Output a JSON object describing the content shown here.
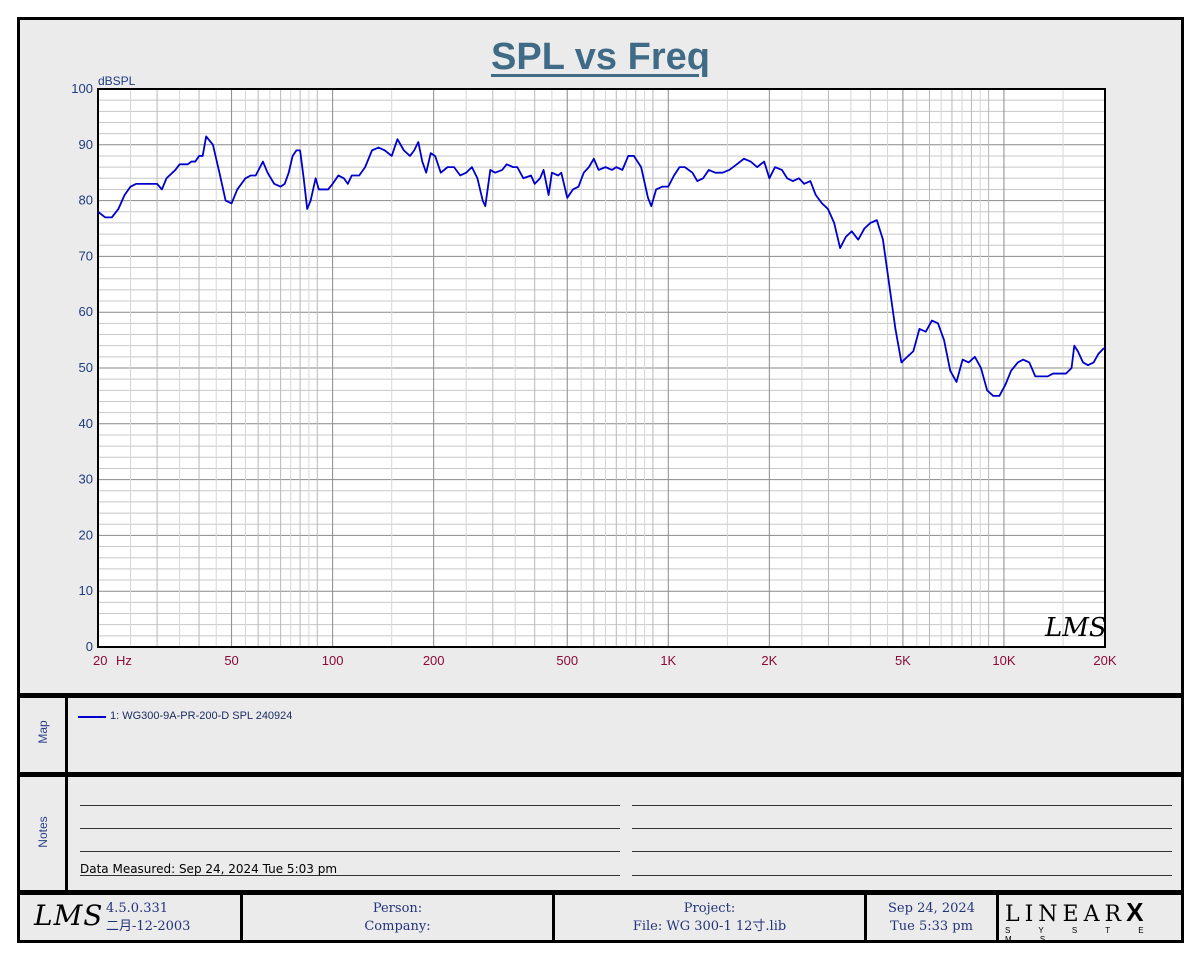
{
  "title": "SPL vs Freq",
  "chart_data": {
    "type": "line",
    "title": "SPL vs Freq",
    "ylabel": "dBSPL",
    "xlabel": "Hz",
    "x_scale": "log",
    "xlim": [
      20,
      20000
    ],
    "ylim": [
      0,
      100
    ],
    "grid": true,
    "y_ticks": [
      "0",
      "10",
      "20",
      "30",
      "40",
      "50",
      "60",
      "70",
      "80",
      "90",
      "100"
    ],
    "x_ticks": [
      {
        "value": 20,
        "label": "20"
      },
      {
        "value": 50,
        "label": "50"
      },
      {
        "value": 100,
        "label": "100"
      },
      {
        "value": 200,
        "label": "200"
      },
      {
        "value": 500,
        "label": "500"
      },
      {
        "value": 1000,
        "label": "1K"
      },
      {
        "value": 2000,
        "label": "2K"
      },
      {
        "value": 5000,
        "label": "5K"
      },
      {
        "value": 10000,
        "label": "10K"
      },
      {
        "value": 20000,
        "label": "20K"
      }
    ],
    "series": [
      {
        "name": "1: WG300-9A-PR-200-D SPL 240924",
        "color": "#0000cc",
        "points": [
          [
            20,
            78
          ],
          [
            21,
            77
          ],
          [
            22,
            77
          ],
          [
            23,
            78.5
          ],
          [
            24,
            81
          ],
          [
            25,
            82.5
          ],
          [
            26,
            83
          ],
          [
            28,
            83
          ],
          [
            30,
            83
          ],
          [
            31,
            82
          ],
          [
            32,
            84
          ],
          [
            34,
            85.5
          ],
          [
            35,
            86.5
          ],
          [
            37,
            86.5
          ],
          [
            38,
            87
          ],
          [
            39,
            87
          ],
          [
            40,
            88
          ],
          [
            41,
            88
          ],
          [
            42,
            91.5
          ],
          [
            44,
            90
          ],
          [
            46,
            85
          ],
          [
            48,
            80
          ],
          [
            50,
            79.5
          ],
          [
            52,
            82
          ],
          [
            55,
            84
          ],
          [
            57,
            84.5
          ],
          [
            59,
            84.5
          ],
          [
            62,
            87
          ],
          [
            64,
            85
          ],
          [
            67,
            83
          ],
          [
            70,
            82.5
          ],
          [
            72,
            83
          ],
          [
            74,
            85
          ],
          [
            76,
            88
          ],
          [
            78,
            89
          ],
          [
            80,
            89
          ],
          [
            82,
            84
          ],
          [
            84,
            78.5
          ],
          [
            86,
            80
          ],
          [
            89,
            84
          ],
          [
            91,
            82
          ],
          [
            94,
            82
          ],
          [
            97,
            82
          ],
          [
            100,
            83
          ],
          [
            104,
            84.5
          ],
          [
            108,
            84
          ],
          [
            111,
            83
          ],
          [
            114,
            84.5
          ],
          [
            120,
            84.5
          ],
          [
            125,
            86
          ],
          [
            131,
            89
          ],
          [
            137,
            89.5
          ],
          [
            143,
            89
          ],
          [
            150,
            88
          ],
          [
            156,
            91
          ],
          [
            163,
            89
          ],
          [
            170,
            88
          ],
          [
            175,
            89
          ],
          [
            180,
            90.5
          ],
          [
            185,
            87
          ],
          [
            190,
            85
          ],
          [
            196,
            88.5
          ],
          [
            202,
            88
          ],
          [
            210,
            85
          ],
          [
            220,
            86
          ],
          [
            230,
            86
          ],
          [
            240,
            84.5
          ],
          [
            250,
            85
          ],
          [
            260,
            86
          ],
          [
            270,
            84
          ],
          [
            280,
            80
          ],
          [
            285,
            79
          ],
          [
            295,
            85.5
          ],
          [
            305,
            85
          ],
          [
            320,
            85.5
          ],
          [
            330,
            86.5
          ],
          [
            345,
            86
          ],
          [
            355,
            86
          ],
          [
            370,
            84
          ],
          [
            390,
            84.5
          ],
          [
            400,
            83
          ],
          [
            415,
            84
          ],
          [
            425,
            85.5
          ],
          [
            440,
            81
          ],
          [
            450,
            85
          ],
          [
            470,
            84.5
          ],
          [
            480,
            85
          ],
          [
            500,
            80.5
          ],
          [
            520,
            82
          ],
          [
            540,
            82.5
          ],
          [
            560,
            85
          ],
          [
            580,
            86
          ],
          [
            600,
            87.5
          ],
          [
            620,
            85.5
          ],
          [
            650,
            86
          ],
          [
            680,
            85.5
          ],
          [
            700,
            86
          ],
          [
            730,
            85.5
          ],
          [
            760,
            88
          ],
          [
            790,
            88
          ],
          [
            830,
            86
          ],
          [
            870,
            80.5
          ],
          [
            890,
            79
          ],
          [
            920,
            82
          ],
          [
            960,
            82.5
          ],
          [
            1000,
            82.5
          ],
          [
            1040,
            84.5
          ],
          [
            1080,
            86
          ],
          [
            1120,
            86
          ],
          [
            1180,
            85
          ],
          [
            1220,
            83.5
          ],
          [
            1270,
            84
          ],
          [
            1320,
            85.5
          ],
          [
            1380,
            85
          ],
          [
            1450,
            85
          ],
          [
            1520,
            85.5
          ],
          [
            1600,
            86.5
          ],
          [
            1680,
            87.5
          ],
          [
            1760,
            87
          ],
          [
            1840,
            86
          ],
          [
            1930,
            87
          ],
          [
            2000,
            84
          ],
          [
            2080,
            86
          ],
          [
            2180,
            85.5
          ],
          [
            2260,
            84
          ],
          [
            2350,
            83.5
          ],
          [
            2450,
            84
          ],
          [
            2540,
            83
          ],
          [
            2650,
            83.5
          ],
          [
            2750,
            81
          ],
          [
            2870,
            79.5
          ],
          [
            2990,
            78.5
          ],
          [
            3120,
            76
          ],
          [
            3250,
            71.5
          ],
          [
            3380,
            73.5
          ],
          [
            3520,
            74.5
          ],
          [
            3680,
            73
          ],
          [
            3840,
            75
          ],
          [
            4000,
            76
          ],
          [
            4180,
            76.5
          ],
          [
            4360,
            73
          ],
          [
            4550,
            65
          ],
          [
            4750,
            57
          ],
          [
            4950,
            51
          ],
          [
            5150,
            52
          ],
          [
            5370,
            53
          ],
          [
            5600,
            57
          ],
          [
            5850,
            56.5
          ],
          [
            6100,
            58.5
          ],
          [
            6360,
            58
          ],
          [
            6630,
            55
          ],
          [
            6920,
            49.5
          ],
          [
            7220,
            47.5
          ],
          [
            7530,
            51.5
          ],
          [
            7850,
            51
          ],
          [
            8190,
            52
          ],
          [
            8540,
            50
          ],
          [
            8910,
            46
          ],
          [
            9290,
            45
          ],
          [
            9690,
            45
          ],
          [
            10100,
            47
          ],
          [
            10500,
            49.5
          ],
          [
            11000,
            51
          ],
          [
            11400,
            51.5
          ],
          [
            11900,
            51
          ],
          [
            12400,
            48.5
          ],
          [
            12900,
            48.5
          ],
          [
            13500,
            48.5
          ],
          [
            14000,
            49
          ],
          [
            14700,
            49
          ],
          [
            15300,
            49
          ],
          [
            15900,
            50
          ],
          [
            16200,
            54
          ],
          [
            16600,
            53
          ],
          [
            17200,
            51
          ],
          [
            17800,
            50.5
          ],
          [
            18500,
            51
          ],
          [
            19100,
            52.5
          ],
          [
            19800,
            53.5
          ],
          [
            20000,
            53.5
          ]
        ]
      }
    ],
    "watermark": "LMS"
  },
  "map": {
    "label": "Map",
    "legend_text": "1: WG300-9A-PR-200-D SPL 240924"
  },
  "notes": {
    "label": "Notes",
    "measured": "Data Measured: Sep 24, 2024  Tue  5:03 pm"
  },
  "footer": {
    "logo": "LMS",
    "version": "4.5.0.331",
    "version_date": "二月-12-2003",
    "person_label": "Person:",
    "company_label": "Company:",
    "project_label": "Project:",
    "file_label": "File: WG 300-1 12寸.lib",
    "date": "Sep 24, 2024",
    "time": "Tue  5:33 pm",
    "brand": "LINEAR",
    "brand_mark": "X",
    "brand_sub": "S Y S T E M S"
  }
}
